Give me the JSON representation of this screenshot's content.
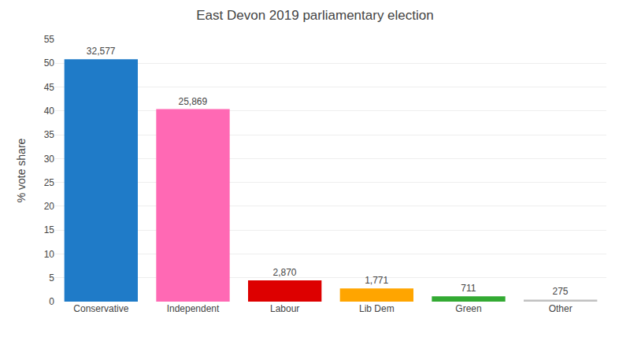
{
  "chart_data": {
    "type": "bar",
    "title": "East Devon 2019 parliamentary election",
    "ylabel": "% vote share",
    "categories": [
      "Conservative",
      "Independent",
      "Labour",
      "Lib Dem",
      "Green",
      "Other"
    ],
    "values": [
      50.84,
      40.37,
      4.48,
      2.76,
      1.11,
      0.43
    ],
    "votes": [
      32577,
      25869,
      2870,
      1771,
      711,
      275
    ],
    "labels": [
      "32,577",
      "25,869",
      "2,870",
      "1,771",
      "711",
      "275"
    ],
    "colors": [
      "#1f7bc8",
      "#ff69b4",
      "#dd0000",
      "#ffa500",
      "#33aa33",
      "#c0c0c0"
    ],
    "ylim": [
      0,
      55
    ],
    "yticks": [
      0,
      5,
      10,
      15,
      20,
      25,
      30,
      35,
      40,
      45,
      50,
      55
    ],
    "grid": true
  }
}
